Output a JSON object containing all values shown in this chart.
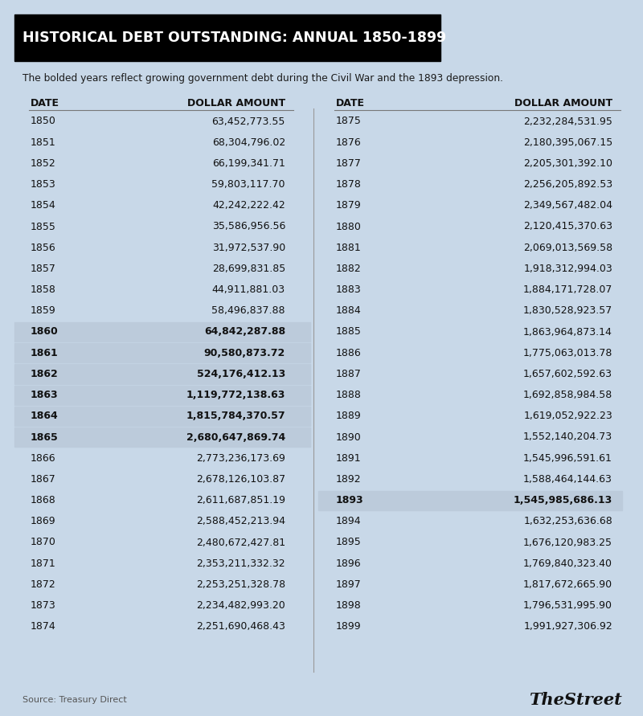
{
  "title": "HISTORICAL DEBT OUTSTANDING: ANNUAL 1850-1899",
  "subtitle": "The bolded years reflect growing government debt during the Civil War and the 1893 depression.",
  "source": "Source: Treasury Direct",
  "watermark": "TheStreet",
  "bg_color": "#c8d8e8",
  "title_bg": "#000000",
  "title_color": "#ffffff",
  "left_data": [
    [
      "1850",
      "63,452,773.55",
      false
    ],
    [
      "1851",
      "68,304,796.02",
      false
    ],
    [
      "1852",
      "66,199,341.71",
      false
    ],
    [
      "1853",
      "59,803,117.70",
      false
    ],
    [
      "1854",
      "42,242,222.42",
      false
    ],
    [
      "1855",
      "35,586,956.56",
      false
    ],
    [
      "1856",
      "31,972,537.90",
      false
    ],
    [
      "1857",
      "28,699,831.85",
      false
    ],
    [
      "1858",
      "44,911,881.03",
      false
    ],
    [
      "1859",
      "58,496,837.88",
      false
    ],
    [
      "1860",
      "64,842,287.88",
      true
    ],
    [
      "1861",
      "90,580,873.72",
      true
    ],
    [
      "1862",
      "524,176,412.13",
      true
    ],
    [
      "1863",
      "1,119,772,138.63",
      true
    ],
    [
      "1864",
      "1,815,784,370.57",
      true
    ],
    [
      "1865",
      "2,680,647,869.74",
      true
    ],
    [
      "1866",
      "2,773,236,173.69",
      false
    ],
    [
      "1867",
      "2,678,126,103.87",
      false
    ],
    [
      "1868",
      "2,611,687,851.19",
      false
    ],
    [
      "1869",
      "2,588,452,213.94",
      false
    ],
    [
      "1870",
      "2,480,672,427.81",
      false
    ],
    [
      "1871",
      "2,353,211,332.32",
      false
    ],
    [
      "1872",
      "2,253,251,328.78",
      false
    ],
    [
      "1873",
      "2,234,482,993.20",
      false
    ],
    [
      "1874",
      "2,251,690,468.43",
      false
    ]
  ],
  "right_data": [
    [
      "1875",
      "2,232,284,531.95",
      false
    ],
    [
      "1876",
      "2,180,395,067.15",
      false
    ],
    [
      "1877",
      "2,205,301,392.10",
      false
    ],
    [
      "1878",
      "2,256,205,892.53",
      false
    ],
    [
      "1879",
      "2,349,567,482.04",
      false
    ],
    [
      "1880",
      "2,120,415,370.63",
      false
    ],
    [
      "1881",
      "2,069,013,569.58",
      false
    ],
    [
      "1882",
      "1,918,312,994.03",
      false
    ],
    [
      "1883",
      "1,884,171,728.07",
      false
    ],
    [
      "1884",
      "1,830,528,923.57",
      false
    ],
    [
      "1885",
      "1,863,964,873.14",
      false
    ],
    [
      "1886",
      "1,775,063,013.78",
      false
    ],
    [
      "1887",
      "1,657,602,592.63",
      false
    ],
    [
      "1888",
      "1,692,858,984.58",
      false
    ],
    [
      "1889",
      "1,619,052,922.23",
      false
    ],
    [
      "1890",
      "1,552,140,204.73",
      false
    ],
    [
      "1891",
      "1,545,996,591.61",
      false
    ],
    [
      "1892",
      "1,588,464,144.63",
      false
    ],
    [
      "1893",
      "1,545,985,686.13",
      true
    ],
    [
      "1894",
      "1,632,253,636.68",
      false
    ],
    [
      "1895",
      "1,676,120,983.25",
      false
    ],
    [
      "1896",
      "1,769,840,323.40",
      false
    ],
    [
      "1897",
      "1,817,672,665.90",
      false
    ],
    [
      "1898",
      "1,796,531,995.90",
      false
    ],
    [
      "1899",
      "1,991,927,306.92",
      false
    ]
  ],
  "fig_width": 8.0,
  "fig_height": 8.91,
  "dpi": 100
}
